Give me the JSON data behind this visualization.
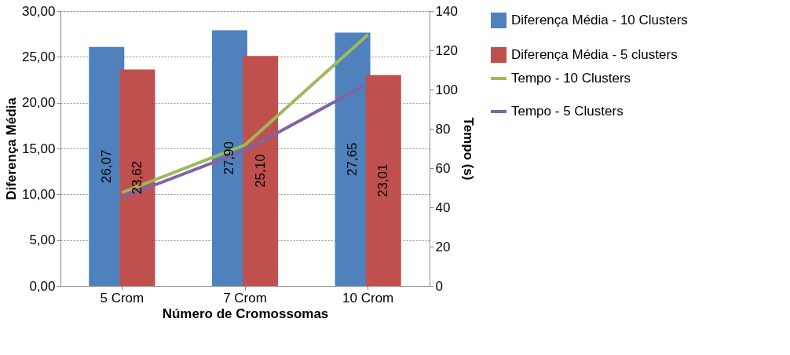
{
  "chart_data": {
    "type": "bar",
    "categories": [
      "5 Crom",
      "7 Crom",
      "10 Crom"
    ],
    "series": [
      {
        "name": "Diferença Média - 10 Clusters",
        "color": "#4f81bd",
        "values": [
          26.07,
          27.9,
          27.65
        ],
        "value_labels": [
          "26,07",
          "27,90",
          "27,65"
        ]
      },
      {
        "name": "Diferença Média - 5 clusters",
        "color": "#c0504d",
        "values": [
          23.62,
          25.1,
          23.01
        ],
        "value_labels": [
          "23,62",
          "25,10",
          "23,01"
        ]
      },
      {
        "name": "Tempo - 10 Clusters",
        "type": "line",
        "axis": "y2",
        "color": "#9bbb59",
        "values": [
          47.5,
          71.8,
          128
        ]
      },
      {
        "name": "Tempo - 5 Clusters",
        "type": "line",
        "axis": "y2",
        "color": "#8064a2",
        "values": [
          45,
          69,
          103
        ]
      }
    ],
    "xlabel": "Número de Cromossomas",
    "ylabel": "Diferença Média",
    "y2label": "Tempo (s)",
    "ylim": [
      0,
      30
    ],
    "yticks": [
      {
        "value": 0,
        "label": "0,00"
      },
      {
        "value": 5,
        "label": "5,00"
      },
      {
        "value": 10,
        "label": "10,00"
      },
      {
        "value": 15,
        "label": "15,00"
      },
      {
        "value": 20,
        "label": "20,00"
      },
      {
        "value": 25,
        "label": "25,00"
      },
      {
        "value": 30,
        "label": "30,00"
      }
    ],
    "y2lim": [
      0,
      140
    ],
    "y2ticks": [
      0,
      20,
      40,
      60,
      80,
      100,
      120,
      140
    ],
    "grid": "y",
    "legend": "right"
  }
}
